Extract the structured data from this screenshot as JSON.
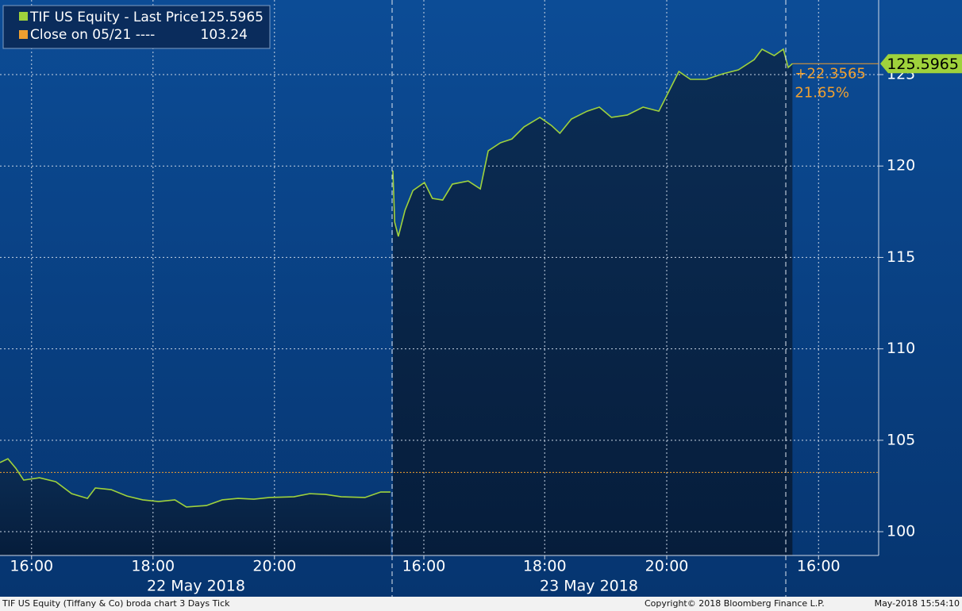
{
  "chart_data": {
    "type": "line",
    "series": [
      {
        "name": "TIF US Equity - Last Price",
        "color": "#9fd23c",
        "x": [
          0,
          0.13,
          0.26,
          0.39,
          0.65,
          0.92,
          1.18,
          1.44,
          1.57,
          1.83,
          2.09,
          2.35,
          2.61,
          2.88,
          3.07,
          3.4,
          3.66,
          3.92,
          4.18,
          4.44,
          4.84,
          5.1,
          5.36,
          5.62,
          6.01,
          6.27,
          6.43,
          null,
          6.47,
          6.5,
          6.56,
          6.67,
          6.8,
          6.99,
          7.12,
          7.29,
          7.45,
          7.71,
          7.91,
          8.04,
          8.24,
          8.43,
          8.63,
          8.89,
          9.08,
          9.22,
          9.41,
          9.67,
          9.87,
          10.07,
          10.33,
          10.59,
          10.85,
          11.05,
          11.18,
          11.37,
          11.63,
          11.9,
          12.16,
          12.42,
          12.55,
          12.75,
          12.9,
          12.98,
          13.05
        ],
        "values": [
          103.78,
          103.99,
          103.47,
          102.82,
          102.95,
          102.73,
          102.08,
          101.82,
          102.39,
          102.3,
          101.95,
          101.74,
          101.65,
          101.74,
          101.35,
          101.43,
          101.74,
          101.82,
          101.78,
          101.87,
          101.91,
          102.08,
          102.04,
          101.91,
          101.87,
          102.17,
          102.17,
          null,
          119.75,
          116.93,
          116.15,
          117.58,
          118.66,
          119.1,
          118.23,
          118.14,
          119.01,
          119.18,
          118.75,
          120.83,
          121.27,
          121.48,
          122.14,
          122.66,
          122.22,
          121.79,
          122.57,
          123.0,
          123.22,
          122.66,
          122.79,
          123.22,
          123.0,
          124.31,
          125.17,
          124.74,
          124.74,
          125.04,
          125.26,
          125.82,
          126.39,
          126.04,
          126.39,
          125.39,
          125.6
        ]
      }
    ],
    "last_value_label": "125.5965",
    "last_value": 125.5965,
    "close_name": "Close on 05/21 ----",
    "close_value": 103.24,
    "close_color": "#f0a030",
    "change_labels": [
      "+22.3565",
      "21.65%"
    ],
    "xlim": [
      0,
      14.47
    ],
    "xticks": [
      {
        "value": 0.52,
        "label": "16:00"
      },
      {
        "value": 2.52,
        "label": "18:00"
      },
      {
        "value": 4.52,
        "label": "20:00"
      },
      {
        "value": 6.98,
        "label": "16:00"
      },
      {
        "value": 8.97,
        "label": "18:00"
      },
      {
        "value": 10.98,
        "label": "20:00"
      },
      {
        "value": 13.48,
        "label": "16:00"
      }
    ],
    "day_labels": [
      "22 May 2018",
      "23 May 2018"
    ],
    "ylim": [
      98.7,
      129.08
    ],
    "yticks": [
      100,
      105,
      110,
      115,
      120,
      125
    ],
    "grid": true,
    "footer_left": "TIF US Equity (Tiffany & Co) broda chart 3 Days  Tick",
    "footer_center": "Copyright© 2018 Bloomberg Finance L.P.",
    "footer_right": "May-2018 15:54:10"
  }
}
